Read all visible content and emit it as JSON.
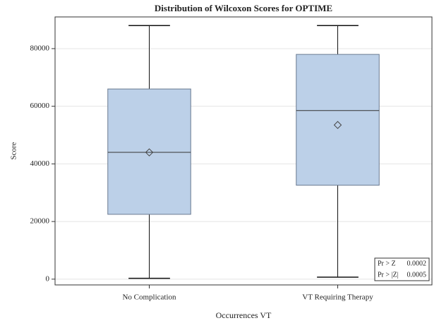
{
  "chart_data": {
    "type": "box",
    "title": "Distribution of Wilcoxon Scores for OPTIME",
    "x_label": "Occurrences VT",
    "y_label": "Score",
    "categories": [
      "No Complication",
      "VT Requiring Therapy"
    ],
    "boxes": [
      {
        "min": 300,
        "q1": 22500,
        "median": 44000,
        "q3": 66000,
        "max": 88000,
        "mean": 44000
      },
      {
        "min": 700,
        "q1": 32600,
        "median": 58500,
        "q3": 78000,
        "max": 88000,
        "mean": 53500
      }
    ],
    "color": "#bcd0e8",
    "ylim": [
      -2000,
      91000
    ],
    "yticks": [
      0,
      20000,
      40000,
      60000,
      80000
    ],
    "grid": true,
    "inset": [
      {
        "label": "Pr > Z",
        "value": 0.0002
      },
      {
        "label": "Pr > |Z|",
        "value": 0.0005
      }
    ]
  }
}
